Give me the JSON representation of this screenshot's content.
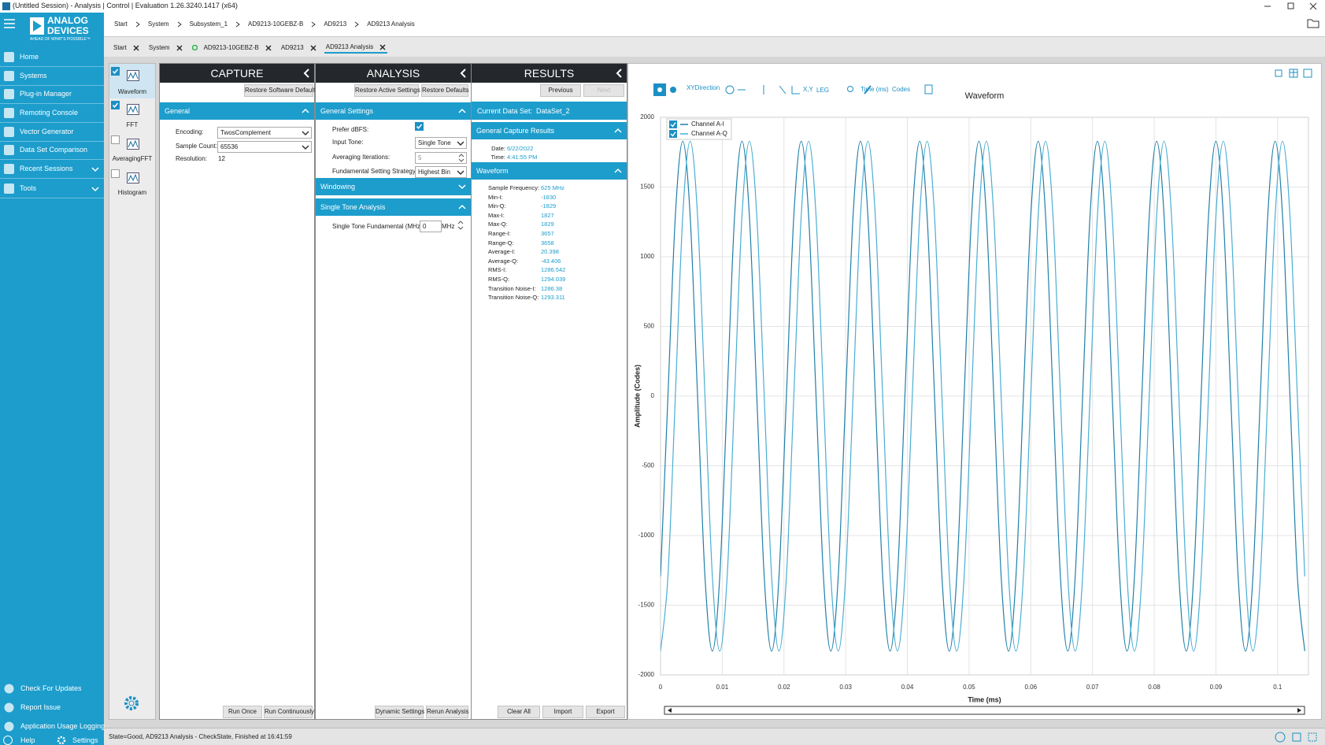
{
  "window_title": "(Untitled Session) - Analysis | Control | Evaluation 1.26.3240.1417 (x64)",
  "logo": {
    "line1": "ANALOG",
    "line2": "DEVICES",
    "tagline": "AHEAD OF WHAT'S POSSIBLE™"
  },
  "sidebar": {
    "items": [
      "Home",
      "Systems",
      "Plug-in Manager",
      "Remoting Console",
      "Vector Generator",
      "Data Set Comparison",
      "Recent Sessions",
      "Tools"
    ],
    "bottom": [
      "Check For Updates",
      "Report Issue",
      "Application Usage Logging"
    ],
    "help": "Help",
    "settings": "Settings"
  },
  "breadcrumb": [
    "Start",
    "System",
    "Subsystem_1",
    "AD9213-10GEBZ-B",
    "AD9213",
    "AD9213 Analysis"
  ],
  "tabs": [
    "Start",
    "System",
    "AD9213-10GEBZ-B",
    "AD9213",
    "AD9213 Analysis"
  ],
  "views": [
    "Waveform",
    "FFT",
    "AveragingFFT",
    "Histogram"
  ],
  "capture": {
    "title": "CAPTURE",
    "restore": "Restore Software Defaults",
    "section": "General",
    "fields": [
      [
        "Encoding:",
        "TwosComplement"
      ],
      [
        "Sample Count:",
        "65536"
      ],
      [
        "Resolution:",
        "12"
      ]
    ],
    "buttons": [
      "Run Once",
      "Run Continuously"
    ]
  },
  "analysis": {
    "title": "ANALYSIS",
    "top_buttons": [
      "Restore Active Settings",
      "Restore Defaults"
    ],
    "section": "General Settings",
    "prefer_label": "Prefer dBFS:",
    "fields": [
      [
        "Input Tone:",
        "Single Tone"
      ],
      [
        "Averaging Iterations:",
        "5"
      ],
      [
        "Fundamental Setting Strategy:",
        "Highest Bin"
      ]
    ],
    "windowing": "Windowing",
    "single_tone": "Single Tone Analysis",
    "fundamental_label": "Single Tone Fundamental (MHz):",
    "fundamental_value": "0",
    "fundamental_unit": "MHz",
    "buttons": [
      "Dynamic Settings",
      "Rerun Analysis"
    ]
  },
  "results": {
    "title": "RESULTS",
    "nav": [
      "Previous",
      "Next"
    ],
    "dataset_label": "Current Data Set:",
    "dataset": "DataSet_2",
    "capture_section": "General Capture Results",
    "capture_fields": [
      [
        "Date:",
        "6/22/2022"
      ],
      [
        "Time:",
        "4:41:55 PM"
      ]
    ],
    "waveform_section": "Waveform",
    "waveform_fields": [
      [
        "Sample Frequency:",
        "625 MHz"
      ],
      [
        "Min-I:",
        "-1830"
      ],
      [
        "Min-Q:",
        "-1829"
      ],
      [
        "Max-I:",
        "1827"
      ],
      [
        "Max-Q:",
        "1829"
      ],
      [
        "Range-I:",
        "3657"
      ],
      [
        "Range-Q:",
        "3658"
      ],
      [
        "Average-I:",
        "20.398"
      ],
      [
        "Average-Q:",
        "-43.406"
      ],
      [
        "RMS-I:",
        "1286.542"
      ],
      [
        "RMS-Q:",
        "1294.039"
      ],
      [
        "Transition Noise-I:",
        "1286.38"
      ],
      [
        "Transition Noise-Q:",
        "1293.311"
      ]
    ],
    "buttons": [
      "Clear All",
      "Import",
      "Export"
    ]
  },
  "toolbar": [
    "XYDirection",
    "X,Y",
    "LEG",
    "Time (ms)",
    "Codes"
  ],
  "chart_data": {
    "type": "line",
    "title": "Waveform",
    "x_label": "Time (ms)",
    "y_label": "Amplitude (Codes)",
    "x": [
      0,
      0.0012,
      0.0024,
      0.0036,
      0.0048,
      0.006,
      0.0072,
      0.0084,
      0.0096,
      0.0108,
      0.012,
      0.0132,
      0.0144,
      0.0156,
      0.0168,
      0.018,
      0.0192,
      0.0204,
      0.0216,
      0.0228,
      0.024,
      0.0252,
      0.0264,
      0.0276,
      0.0288,
      0.03,
      0.0312,
      0.0324,
      0.0336,
      0.0348,
      0.036,
      0.0372,
      0.0384,
      0.0396,
      0.0408,
      0.042,
      0.0432,
      0.0444,
      0.0456,
      0.0468,
      0.048,
      0.0492,
      0.0504,
      0.0516,
      0.0528,
      0.054,
      0.0552,
      0.0564,
      0.0576,
      0.0588,
      0.06,
      0.0612,
      0.0624,
      0.0636,
      0.0648,
      0.066,
      0.0672,
      0.0684,
      0.0696,
      0.0708,
      0.072,
      0.0732,
      0.0744,
      0.0756,
      0.0768,
      0.078,
      0.0792,
      0.0804,
      0.0816,
      0.0828,
      0.084,
      0.0852,
      0.0864,
      0.0876,
      0.0888,
      0.09,
      0.0912,
      0.0924,
      0.0936,
      0.0948,
      0.096,
      0.0972,
      0.0984,
      0.0996,
      0.1008,
      0.102,
      0.1032,
      0.1044
    ],
    "series": [
      {
        "name": "Channel A-I",
        "color": "#1f7fa8",
        "values": [
          -1293,
          0,
          1293,
          1828,
          1293,
          0,
          -1293,
          -1829,
          -1293,
          0,
          1293,
          1828,
          1293,
          0,
          -1293,
          -1829,
          -1293,
          0,
          1293,
          1828,
          1293,
          0,
          -1293,
          -1829,
          -1293,
          0,
          1293,
          1828,
          1293,
          0,
          -1293,
          -1829,
          -1293,
          0,
          1293,
          1828,
          1293,
          0,
          -1293,
          -1829,
          -1293,
          0,
          1293,
          1828,
          1293,
          0,
          -1293,
          -1829,
          -1293,
          0,
          1293,
          1828,
          1293,
          0,
          -1293,
          -1829,
          -1293,
          0,
          1293,
          1828,
          1293,
          0,
          -1293,
          -1829,
          -1293,
          0,
          1293,
          1828,
          1293,
          0,
          -1293,
          -1829,
          -1293,
          0,
          1293,
          1828,
          1293,
          0,
          -1293,
          -1829,
          -1293,
          0,
          1293,
          1828,
          1293,
          0,
          -1293,
          -1829
        ]
      },
      {
        "name": "Channel A-Q",
        "color": "#4aaed3",
        "values": [
          -1829,
          -1293,
          0,
          1293,
          1828,
          1293,
          0,
          -1293,
          -1829,
          -1293,
          0,
          1293,
          1828,
          1293,
          0,
          -1293,
          -1829,
          -1293,
          0,
          1293,
          1828,
          1293,
          0,
          -1293,
          -1829,
          -1293,
          0,
          1293,
          1828,
          1293,
          0,
          -1293,
          -1829,
          -1293,
          0,
          1293,
          1828,
          1293,
          0,
          -1293,
          -1829,
          -1293,
          0,
          1293,
          1828,
          1293,
          0,
          -1293,
          -1829,
          -1293,
          0,
          1293,
          1828,
          1293,
          0,
          -1293,
          -1829,
          -1293,
          0,
          1293,
          1828,
          1293,
          0,
          -1293,
          -1829,
          -1293,
          0,
          1293,
          1828,
          1293,
          0,
          -1293,
          -1829,
          -1293,
          0,
          1293,
          1828,
          1293,
          0,
          -1293,
          -1829,
          -1293,
          0,
          1293,
          1828,
          1293,
          0,
          -1293
        ]
      }
    ],
    "xlim": [
      0,
      0.105
    ],
    "ylim": [
      -2000,
      2000
    ],
    "xticks": [
      0,
      0.01,
      0.02,
      0.03,
      0.04,
      0.05,
      0.06,
      0.07,
      0.08,
      0.09,
      0.1
    ],
    "yticks": [
      -2000,
      -1500,
      -1000,
      -500,
      0,
      500,
      1000,
      1500,
      2000
    ],
    "grid": true,
    "legend": "upper left"
  },
  "status": "State=Good, AD9213 Analysis - CheckState, Finished at 16:41:59"
}
